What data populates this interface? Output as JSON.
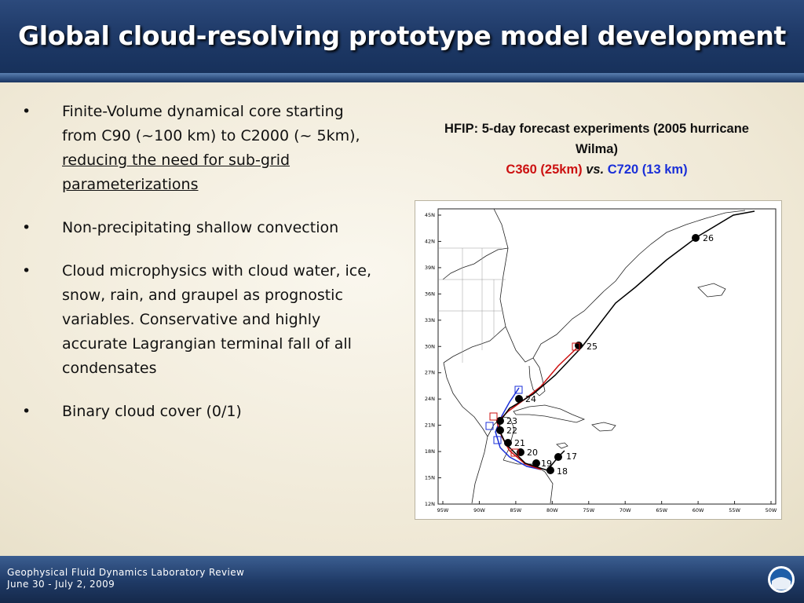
{
  "slide": {
    "title": "Global cloud-resolving prototype model development"
  },
  "bullets": [
    {
      "marker": "•",
      "text": "Finite-Volume dynamical core starting from C90 (~100 km) to C2000 (~ 5km), ",
      "underlined": "reducing the need for sub-grid parameterizations"
    },
    {
      "marker": "•",
      "text": "Non-precipitating shallow convection"
    },
    {
      "marker": "•",
      "text": "Cloud microphysics with cloud water, ice, snow, rain, and graupel as prognostic variables. Conservative and highly accurate Lagrangian terminal fall of all condensates"
    },
    {
      "marker": "•",
      "text": "Binary cloud cover (0/1)"
    }
  ],
  "caption": {
    "line1": "HFIP: 5-day forecast experiments (2005 hurricane Wilma)",
    "c360": "C360 (25km)",
    "vs": "vs.",
    "c720": "C720 (13 km)"
  },
  "colors": {
    "c360": "#cc1111",
    "c720": "#1a2fd8",
    "observed": "#000000",
    "header": "#1f3a68"
  },
  "map": {
    "lat_ticks": [
      "45N",
      "42N",
      "39N",
      "36N",
      "33N",
      "30N",
      "27N",
      "24N",
      "21N",
      "18N",
      "15N",
      "12N"
    ],
    "lon_ticks": [
      "95W",
      "90W",
      "85W",
      "80W",
      "75W",
      "70W",
      "65W",
      "60W",
      "55W",
      "50W"
    ],
    "day_labels": [
      "26",
      "25",
      "24",
      "23",
      "22",
      "21",
      "20",
      "19",
      "18",
      "17"
    ]
  },
  "footer": {
    "line1": "Geophysical Fluid Dynamics Laboratory Review",
    "line2": "June 30 - July 2, 2009",
    "logo_text": "NOAA"
  }
}
